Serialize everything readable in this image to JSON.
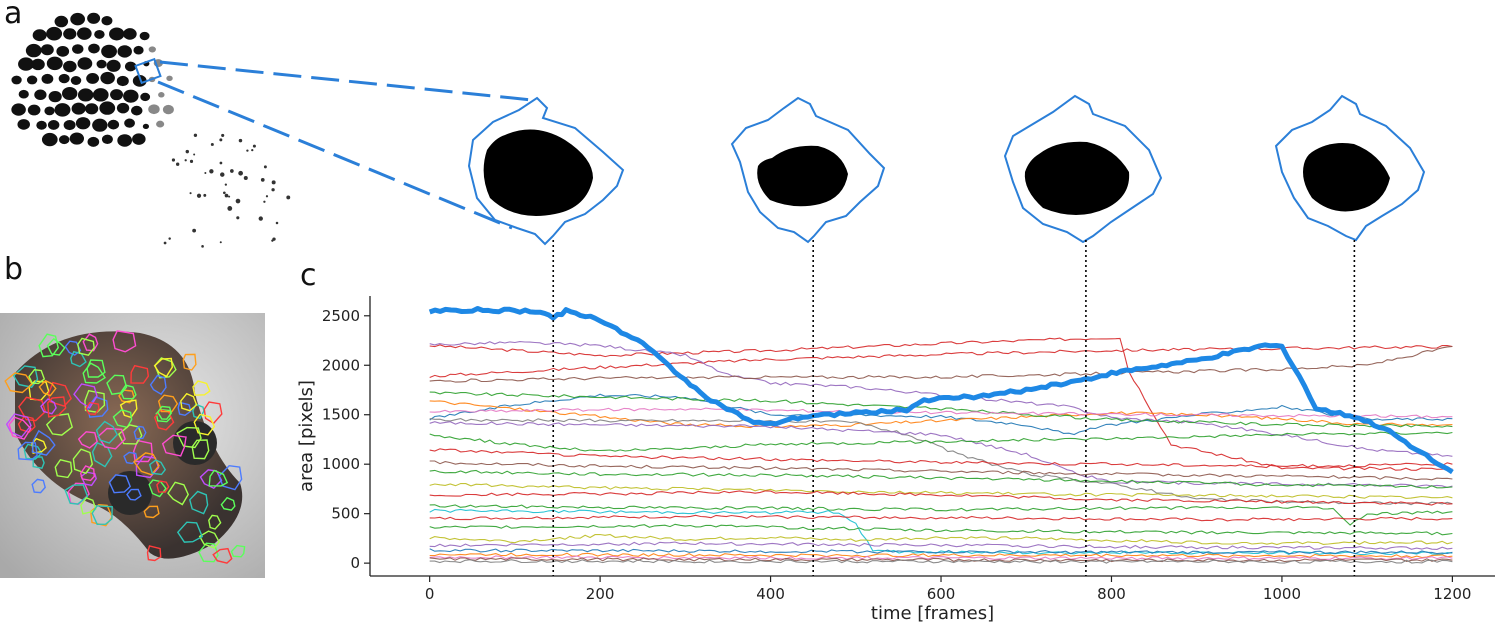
{
  "panels": {
    "a": {
      "letter": "a"
    },
    "b": {
      "letter": "b"
    },
    "c": {
      "letter": "c"
    }
  },
  "colors": {
    "highlight": "#1e88e5",
    "cell_outline": "#2b7fd8"
  },
  "chart_data": {
    "type": "line",
    "xlabel": "time [frames]",
    "ylabel": "area [pixels]",
    "xlim": [
      -70,
      1250
    ],
    "ylim": [
      -130,
      2700
    ],
    "x_ticks": [
      0,
      200,
      400,
      600,
      800,
      1000,
      1200
    ],
    "y_ticks": [
      0,
      500,
      1000,
      1500,
      2000,
      2500
    ],
    "x_tick_labels": [
      "0",
      "200",
      "400",
      "600",
      "800",
      "1000",
      "1200"
    ],
    "y_tick_labels": [
      "0",
      "500",
      "1000",
      "1500",
      "2000",
      "2500"
    ],
    "snapshot_frames": [
      145,
      450,
      770,
      1085
    ],
    "highlighted_series": {
      "color": "#1e88e5",
      "points": [
        [
          0,
          2550
        ],
        [
          50,
          2560
        ],
        [
          100,
          2550
        ],
        [
          130,
          2545
        ],
        [
          145,
          2480
        ],
        [
          160,
          2550
        ],
        [
          200,
          2460
        ],
        [
          250,
          2220
        ],
        [
          300,
          1850
        ],
        [
          330,
          1650
        ],
        [
          380,
          1420
        ],
        [
          400,
          1400
        ],
        [
          420,
          1450
        ],
        [
          450,
          1490
        ],
        [
          500,
          1520
        ],
        [
          560,
          1550
        ],
        [
          580,
          1650
        ],
        [
          650,
          1690
        ],
        [
          700,
          1750
        ],
        [
          770,
          1860
        ],
        [
          800,
          1920
        ],
        [
          900,
          2050
        ],
        [
          980,
          2200
        ],
        [
          1000,
          2190
        ],
        [
          1020,
          1900
        ],
        [
          1040,
          1560
        ],
        [
          1085,
          1480
        ],
        [
          1120,
          1360
        ],
        [
          1200,
          920
        ]
      ]
    },
    "background_series": [
      {
        "color": "#d62728",
        "points": [
          [
            0,
            2200
          ],
          [
            200,
            2100
          ],
          [
            400,
            2150
          ],
          [
            600,
            2220
          ],
          [
            800,
            2280
          ],
          [
            810,
            2280
          ],
          [
            820,
            1950
          ],
          [
            870,
            1200
          ],
          [
            1000,
            960
          ],
          [
            1200,
            950
          ]
        ]
      },
      {
        "color": "#d62728",
        "points": [
          [
            0,
            1890
          ],
          [
            200,
            1980
          ],
          [
            400,
            2060
          ],
          [
            600,
            2110
          ],
          [
            800,
            2150
          ],
          [
            1000,
            2170
          ],
          [
            1200,
            2190
          ]
        ]
      },
      {
        "color": "#9467bd",
        "points": [
          [
            0,
            2210
          ],
          [
            100,
            2230
          ],
          [
            200,
            2200
          ],
          [
            300,
            2100
          ],
          [
            350,
            1900
          ],
          [
            400,
            1820
          ],
          [
            500,
            1780
          ],
          [
            600,
            1700
          ],
          [
            700,
            1620
          ],
          [
            750,
            1580
          ],
          [
            800,
            1470
          ],
          [
            900,
            1420
          ],
          [
            1000,
            1300
          ],
          [
            1100,
            1150
          ],
          [
            1200,
            1080
          ]
        ]
      },
      {
        "color": "#8c564b",
        "points": [
          [
            0,
            1840
          ],
          [
            200,
            1870
          ],
          [
            400,
            1880
          ],
          [
            600,
            1880
          ],
          [
            800,
            1920
          ],
          [
            1000,
            1960
          ],
          [
            1100,
            2000
          ],
          [
            1200,
            2190
          ]
        ]
      },
      {
        "color": "#1f77b4",
        "points": [
          [
            0,
            1460
          ],
          [
            100,
            1600
          ],
          [
            200,
            1700
          ],
          [
            300,
            1680
          ],
          [
            400,
            1500
          ],
          [
            500,
            1500
          ],
          [
            600,
            1480
          ],
          [
            700,
            1400
          ],
          [
            750,
            1300
          ],
          [
            800,
            1400
          ],
          [
            900,
            1500
          ],
          [
            1000,
            1580
          ],
          [
            1100,
            1450
          ],
          [
            1200,
            1460
          ]
        ]
      },
      {
        "color": "#ff7f0e",
        "points": [
          [
            0,
            1640
          ],
          [
            100,
            1560
          ],
          [
            200,
            1480
          ],
          [
            300,
            1400
          ],
          [
            400,
            1380
          ],
          [
            500,
            1400
          ],
          [
            600,
            1440
          ],
          [
            700,
            1480
          ],
          [
            800,
            1520
          ],
          [
            900,
            1500
          ],
          [
            1000,
            1460
          ],
          [
            1100,
            1400
          ],
          [
            1200,
            1400
          ]
        ]
      },
      {
        "color": "#2ca02c",
        "points": [
          [
            0,
            1720
          ],
          [
            200,
            1680
          ],
          [
            400,
            1640
          ],
          [
            600,
            1560
          ],
          [
            800,
            1450
          ],
          [
            1000,
            1400
          ],
          [
            1200,
            1380
          ]
        ]
      },
      {
        "color": "#7f7f7f",
        "points": [
          [
            0,
            1450
          ],
          [
            200,
            1440
          ],
          [
            400,
            1440
          ],
          [
            500,
            1420
          ],
          [
            560,
            1300
          ],
          [
            620,
            1100
          ],
          [
            660,
            1000
          ],
          [
            700,
            900
          ],
          [
            800,
            800
          ],
          [
            900,
            650
          ],
          [
            1000,
            620
          ],
          [
            1200,
            600
          ]
        ]
      },
      {
        "color": "#e377c2",
        "points": [
          [
            0,
            1530
          ],
          [
            300,
            1560
          ],
          [
            600,
            1520
          ],
          [
            900,
            1500
          ],
          [
            1200,
            1480
          ]
        ]
      },
      {
        "color": "#9467bd",
        "points": [
          [
            0,
            1420
          ],
          [
            200,
            1400
          ],
          [
            400,
            1380
          ],
          [
            600,
            1300
          ],
          [
            700,
            1100
          ],
          [
            760,
            900
          ],
          [
            800,
            820
          ],
          [
            1000,
            800
          ],
          [
            1200,
            780
          ]
        ]
      },
      {
        "color": "#2ca02c",
        "points": [
          [
            0,
            1300
          ],
          [
            100,
            1200
          ],
          [
            200,
            1130
          ],
          [
            300,
            1160
          ],
          [
            400,
            1200
          ],
          [
            600,
            1230
          ],
          [
            800,
            1260
          ],
          [
            1000,
            1300
          ],
          [
            1200,
            1320
          ]
        ]
      },
      {
        "color": "#d62728",
        "points": [
          [
            0,
            1150
          ],
          [
            200,
            1080
          ],
          [
            400,
            1050
          ],
          [
            600,
            1020
          ],
          [
            800,
            1000
          ],
          [
            1000,
            980
          ],
          [
            1200,
            1000
          ]
        ]
      },
      {
        "color": "#8c564b",
        "points": [
          [
            0,
            1020
          ],
          [
            200,
            980
          ],
          [
            400,
            960
          ],
          [
            600,
            930
          ],
          [
            800,
            900
          ],
          [
            1000,
            880
          ],
          [
            1200,
            850
          ]
        ]
      },
      {
        "color": "#2ca02c",
        "points": [
          [
            0,
            930
          ],
          [
            200,
            900
          ],
          [
            400,
            890
          ],
          [
            600,
            860
          ],
          [
            800,
            830
          ],
          [
            1000,
            790
          ],
          [
            1200,
            770
          ]
        ]
      },
      {
        "color": "#bcbd22",
        "points": [
          [
            0,
            800
          ],
          [
            200,
            760
          ],
          [
            400,
            740
          ],
          [
            600,
            710
          ],
          [
            800,
            690
          ],
          [
            1000,
            680
          ],
          [
            1200,
            660
          ]
        ]
      },
      {
        "color": "#d62728",
        "points": [
          [
            0,
            690
          ],
          [
            200,
            700
          ],
          [
            400,
            720
          ],
          [
            600,
            690
          ],
          [
            800,
            640
          ],
          [
            1000,
            620
          ],
          [
            1200,
            600
          ]
        ]
      },
      {
        "color": "#2ca02c",
        "points": [
          [
            0,
            580
          ],
          [
            300,
            560
          ],
          [
            600,
            540
          ],
          [
            900,
            560
          ],
          [
            1060,
            560
          ],
          [
            1080,
            380
          ],
          [
            1100,
            500
          ],
          [
            1200,
            520
          ]
        ]
      },
      {
        "color": "#17becf",
        "points": [
          [
            0,
            530
          ],
          [
            200,
            520
          ],
          [
            400,
            510
          ],
          [
            480,
            520
          ],
          [
            500,
            400
          ],
          [
            520,
            120
          ],
          [
            600,
            110
          ],
          [
            1200,
            100
          ]
        ]
      },
      {
        "color": "#d62728",
        "points": [
          [
            0,
            450
          ],
          [
            300,
            470
          ],
          [
            600,
            460
          ],
          [
            900,
            440
          ],
          [
            1200,
            450
          ]
        ]
      },
      {
        "color": "#bcbd22",
        "points": [
          [
            0,
            260
          ],
          [
            100,
            220
          ],
          [
            200,
            280
          ],
          [
            300,
            240
          ],
          [
            400,
            260
          ],
          [
            500,
            230
          ],
          [
            600,
            260
          ],
          [
            700,
            250
          ],
          [
            800,
            230
          ],
          [
            900,
            210
          ],
          [
            1000,
            200
          ],
          [
            1200,
            210
          ]
        ]
      },
      {
        "color": "#2ca02c",
        "points": [
          [
            0,
            360
          ],
          [
            300,
            380
          ],
          [
            600,
            330
          ],
          [
            900,
            310
          ],
          [
            1200,
            300
          ]
        ]
      },
      {
        "color": "#9467bd",
        "points": [
          [
            0,
            180
          ],
          [
            300,
            200
          ],
          [
            600,
            180
          ],
          [
            900,
            160
          ],
          [
            1200,
            150
          ]
        ]
      },
      {
        "color": "#1f77b4",
        "points": [
          [
            0,
            130
          ],
          [
            400,
            120
          ],
          [
            800,
            110
          ],
          [
            1200,
            110
          ]
        ]
      },
      {
        "color": "#ff7f0e",
        "points": [
          [
            0,
            90
          ],
          [
            400,
            80
          ],
          [
            800,
            80
          ],
          [
            1200,
            70
          ]
        ]
      },
      {
        "color": "#e377c2",
        "points": [
          [
            0,
            60
          ],
          [
            400,
            55
          ],
          [
            800,
            50
          ],
          [
            1200,
            50
          ]
        ]
      },
      {
        "color": "#8c564b",
        "points": [
          [
            0,
            40
          ],
          [
            400,
            35
          ],
          [
            800,
            30
          ],
          [
            1200,
            30
          ]
        ]
      },
      {
        "color": "#7f7f7f",
        "points": [
          [
            0,
            20
          ],
          [
            400,
            18
          ],
          [
            800,
            15
          ],
          [
            1200,
            15
          ]
        ]
      }
    ]
  }
}
